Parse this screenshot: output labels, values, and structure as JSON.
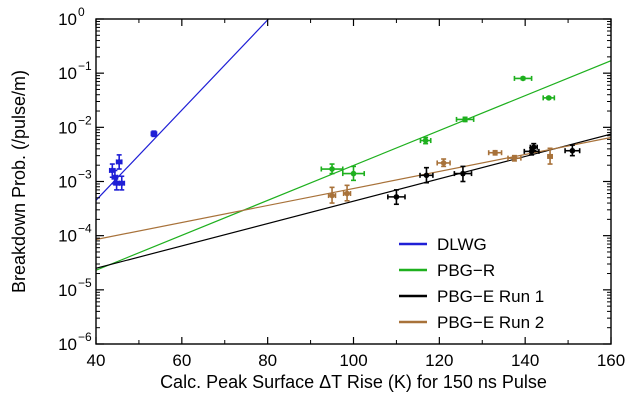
{
  "chart_data": {
    "type": "scatter",
    "xlabel": "Calc. Peak Surface ΔT Rise (K) for 150 ns Pulse",
    "ylabel": "Breakdown Prob. (/pulse/m)",
    "xlim": [
      40,
      160
    ],
    "ylim_log10": [
      -6,
      0
    ],
    "y_scale": "log",
    "x_ticks": [
      "40",
      "60",
      "80",
      "100",
      "120",
      "140",
      "160"
    ],
    "y_ticks": [
      {
        "base": "10",
        "exp": "0"
      },
      {
        "base": "10",
        "exp": "−1"
      },
      {
        "base": "10",
        "exp": "−2"
      },
      {
        "base": "10",
        "exp": "−3"
      },
      {
        "base": "10",
        "exp": "−4"
      },
      {
        "base": "10",
        "exp": "−5"
      },
      {
        "base": "10",
        "exp": "−6"
      }
    ],
    "grid": false,
    "legend_position": "bottom-right",
    "series": [
      {
        "name": "DLWG",
        "color": "#1f1fd6",
        "fit": {
          "x": [
            40,
            80.2
          ],
          "y": [
            0.00045,
            1.0
          ]
        },
        "points": [
          {
            "x": 43.8,
            "y": 0.0016,
            "yerr": [
              0.0012,
              0.0021
            ],
            "xerr": [
              43.2,
              44.4
            ]
          },
          {
            "x": 44.4,
            "y": 0.0012,
            "yerr": [
              0.0009,
              0.0016
            ],
            "xerr": [
              43.8,
              45.0
            ]
          },
          {
            "x": 44.8,
            "y": 0.00093,
            "yerr": [
              0.0007,
              0.00125
            ],
            "xerr": [
              44.2,
              45.4
            ]
          },
          {
            "x": 45.4,
            "y": 0.0023,
            "yerr": [
              0.0017,
              0.0031
            ],
            "xerr": [
              44.8,
              46.0
            ]
          },
          {
            "x": 46.0,
            "y": 0.00093,
            "yerr": [
              0.0007,
              0.00125
            ],
            "xerr": [
              45.4,
              46.6
            ]
          },
          {
            "x": 53.5,
            "y": 0.0076,
            "yerr": [
              0.0068,
              0.0085
            ],
            "xerr": [
              52.9,
              54.1
            ]
          }
        ]
      },
      {
        "name": "PBG−R",
        "color": "#1eb01e",
        "fit": {
          "x": [
            40,
            160
          ],
          "y": [
            2.3e-05,
            0.17
          ]
        },
        "points": [
          {
            "x": 95.0,
            "y": 0.0017,
            "yerr": [
              0.0014,
              0.0021
            ],
            "xerr": [
              92.5,
              97.5
            ]
          },
          {
            "x": 100.0,
            "y": 0.0014,
            "yerr": [
              0.00105,
              0.0019
            ],
            "xerr": [
              97.5,
              102.5
            ]
          },
          {
            "x": 116.8,
            "y": 0.0057,
            "yerr": [
              0.005,
              0.0065
            ],
            "xerr": [
              115.6,
              118.0
            ]
          },
          {
            "x": 126.0,
            "y": 0.014,
            "yerr": [
              0.0128,
              0.0153
            ],
            "xerr": [
              124.0,
              128.0
            ]
          },
          {
            "x": 139.5,
            "y": 0.08,
            "yerr": [
              0.076,
              0.084
            ],
            "xerr": [
              137.5,
              141.5
            ]
          },
          {
            "x": 145.5,
            "y": 0.035,
            "yerr": [
              0.0335,
              0.0365
            ],
            "xerr": [
              144.2,
              146.8
            ]
          }
        ]
      },
      {
        "name": "PBG−E Run 1",
        "color": "#000000",
        "fit": {
          "x": [
            40,
            160
          ],
          "y": [
            2.5e-05,
            0.0075
          ]
        },
        "points": [
          {
            "x": 110.0,
            "y": 0.00052,
            "yerr": [
              0.00038,
              0.0007
            ],
            "xerr": [
              108.0,
              112.0
            ]
          },
          {
            "x": 117.0,
            "y": 0.0013,
            "yerr": [
              0.00095,
              0.0018
            ],
            "xerr": [
              115.5,
              118.5
            ]
          },
          {
            "x": 125.5,
            "y": 0.0014,
            "yerr": [
              0.001,
              0.0019
            ],
            "xerr": [
              123.5,
              127.5
            ]
          },
          {
            "x": 141.5,
            "y": 0.0036,
            "yerr": [
              0.0031,
              0.0042
            ],
            "xerr": [
              139.8,
              143.2
            ]
          },
          {
            "x": 142.0,
            "y": 0.0043,
            "yerr": [
              0.0037,
              0.005
            ],
            "xerr": [
              141.2,
              142.8
            ]
          },
          {
            "x": 151.0,
            "y": 0.0037,
            "yerr": [
              0.003,
              0.0047
            ],
            "xerr": [
              149.3,
              152.7
            ]
          }
        ]
      },
      {
        "name": "PBG−E Run 2",
        "color": "#a8723a",
        "fit": {
          "x": [
            40,
            160
          ],
          "y": [
            8.5e-05,
            0.0065
          ]
        },
        "points": [
          {
            "x": 95.0,
            "y": 0.00055,
            "yerr": [
              0.0004,
              0.00078
            ],
            "xerr": [
              94.2,
              95.8
            ]
          },
          {
            "x": 98.5,
            "y": 0.0006,
            "yerr": [
              0.00044,
              0.00085
            ],
            "xerr": [
              97.7,
              99.3
            ]
          },
          {
            "x": 121.0,
            "y": 0.0022,
            "yerr": [
              0.0019,
              0.0026
            ],
            "xerr": [
              119.5,
              122.5
            ]
          },
          {
            "x": 133.0,
            "y": 0.0034,
            "yerr": [
              0.0031,
              0.0037
            ],
            "xerr": [
              131.5,
              134.5
            ]
          },
          {
            "x": 137.5,
            "y": 0.0027,
            "yerr": [
              0.0024,
              0.003
            ],
            "xerr": [
              136.0,
              139.0
            ]
          },
          {
            "x": 145.8,
            "y": 0.0029,
            "yerr": [
              0.0021,
              0.0041
            ],
            "xerr": [
              145.3,
              146.3
            ]
          }
        ]
      }
    ]
  }
}
